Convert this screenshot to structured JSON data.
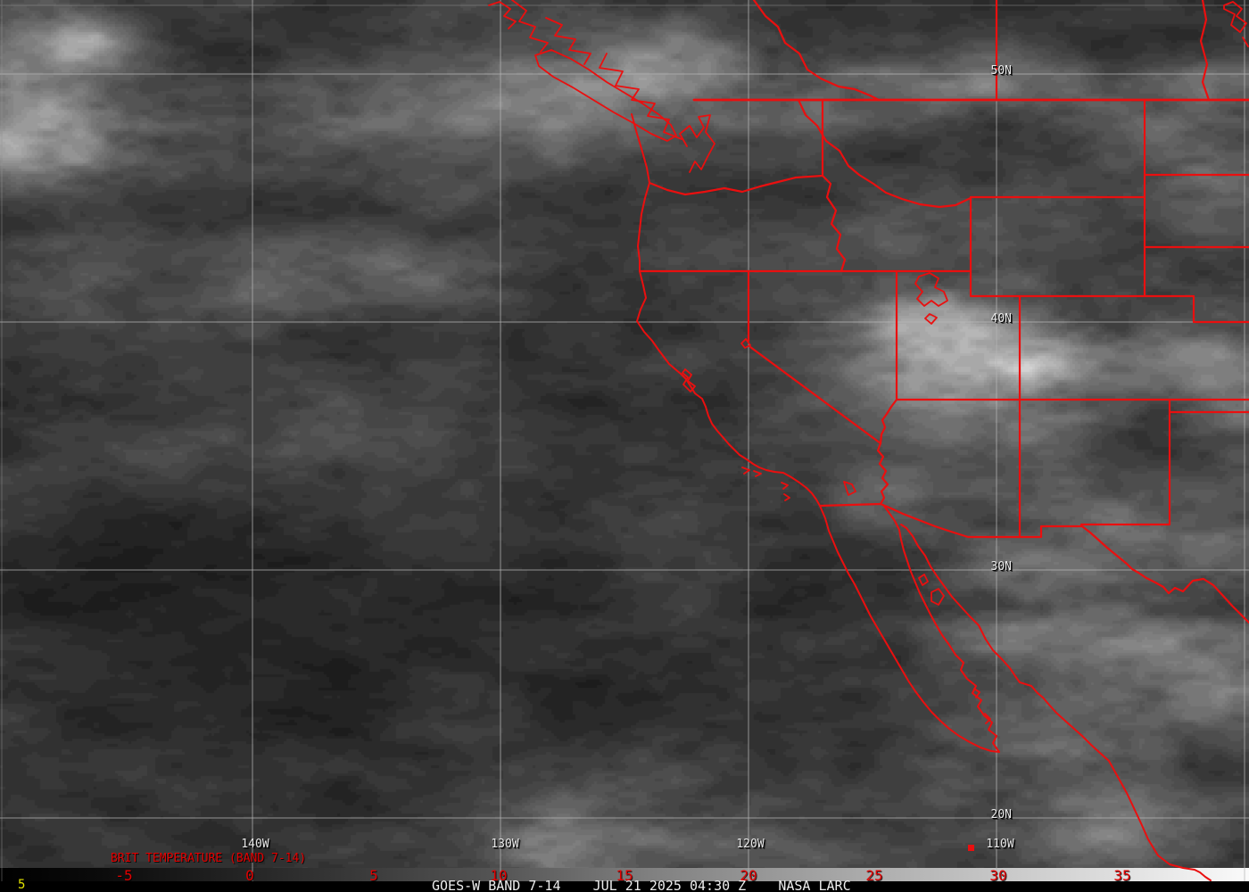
{
  "map": {
    "product_title": "BRIT TEMPERATURE (BAND 7-14)",
    "grid_labels": {
      "latitudes": [
        {
          "text": "50N"
        },
        {
          "text": "40N"
        },
        {
          "text": "30N"
        },
        {
          "text": "20N"
        }
      ],
      "longitudes": [
        {
          "text": "140W"
        },
        {
          "text": "130W"
        },
        {
          "text": "120W"
        },
        {
          "text": "110W"
        }
      ]
    }
  },
  "colorbar": {
    "tick_labels": [
      "-5",
      "0",
      "5",
      "10",
      "15",
      "20",
      "25",
      "30",
      "35"
    ]
  },
  "footer": {
    "left_value": "5",
    "text": "GOES-W BAND 7-14    JUL 21 2025 04:30 Z    NASA LARC"
  },
  "colors": {
    "overlay_red": "#ea0f0f",
    "label_red": "#e30000",
    "grid_gray": "#b6b6b6",
    "label_white": "#ebebeb",
    "footer_yellow": "#e3e300"
  }
}
